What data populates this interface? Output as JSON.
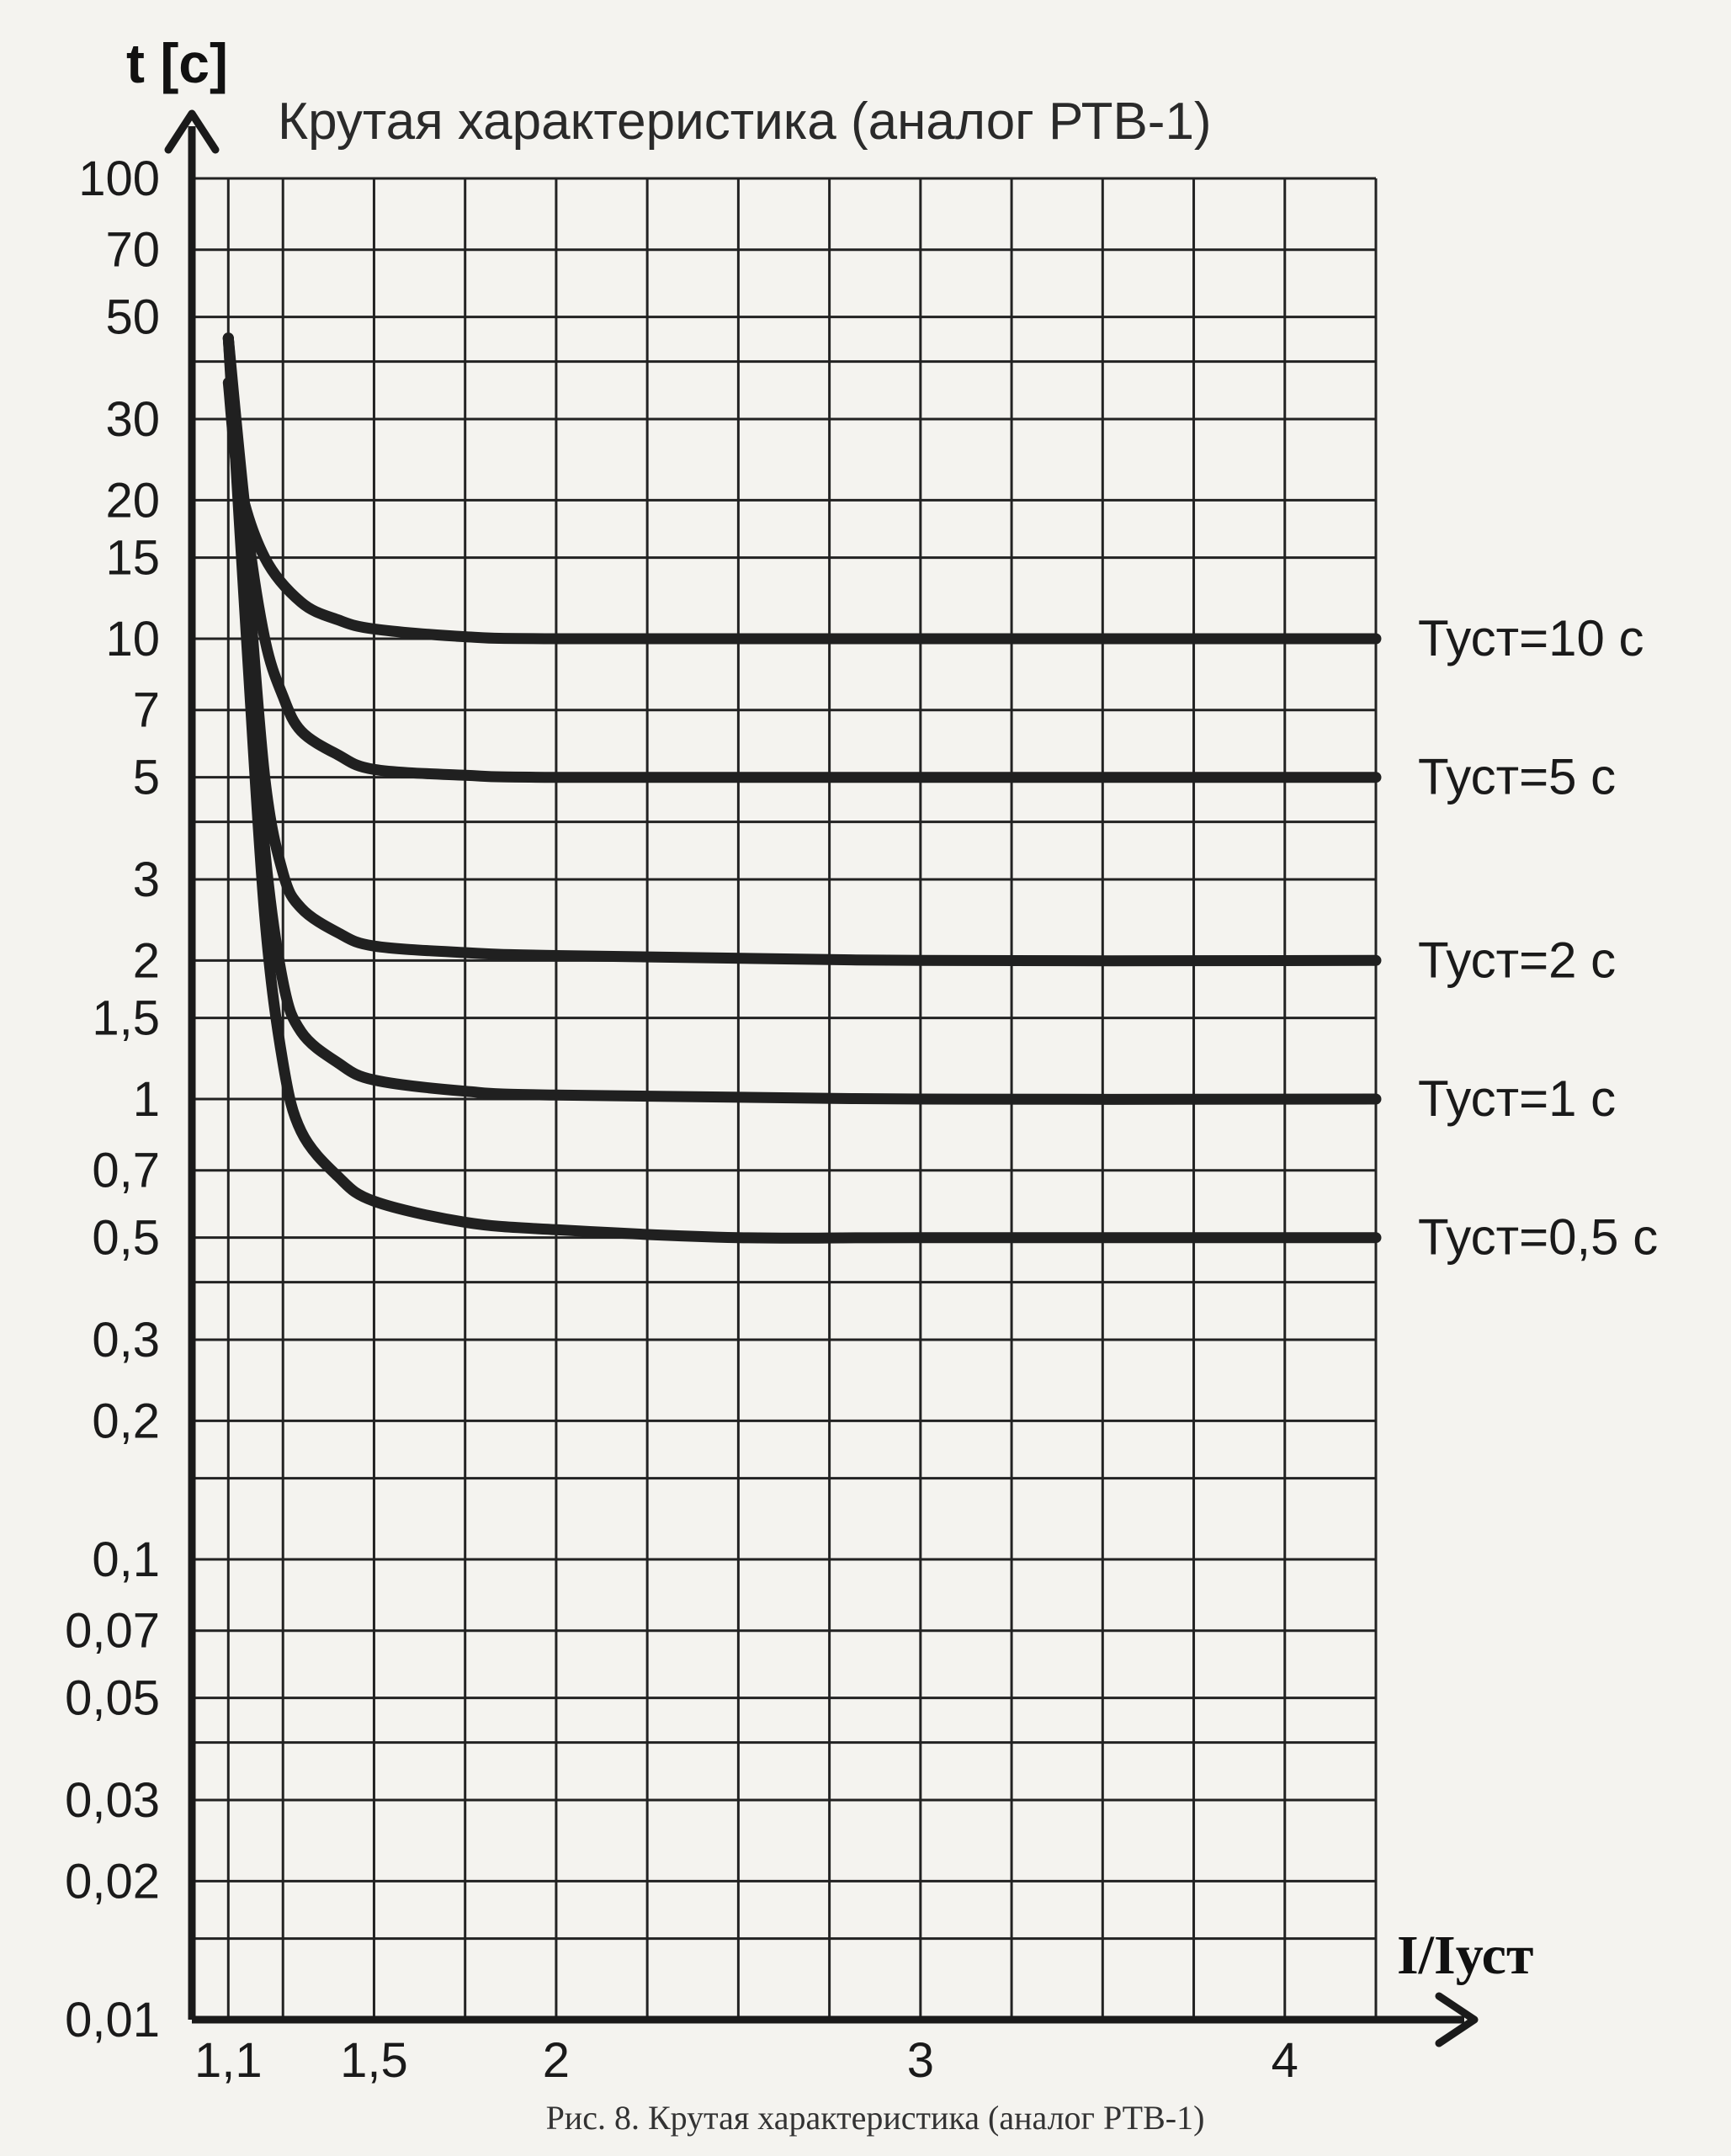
{
  "chart_data": {
    "type": "line",
    "title": "Крутая характеристика (аналог РТВ-1)",
    "ylabel": "t [с]",
    "xlabel": "I/Iуст",
    "caption": "Рис. 8. Крутая характеристика (аналог РТВ-1)",
    "xlim": [
      1.0,
      4.25
    ],
    "ylim": [
      0.01,
      100
    ],
    "yscale": "log",
    "grid": true,
    "x_ticks": [
      {
        "value": 1.1,
        "label": "1,1"
      },
      {
        "value": 1.5,
        "label": "1,5"
      },
      {
        "value": 2,
        "label": "2"
      },
      {
        "value": 3,
        "label": "3"
      },
      {
        "value": 4,
        "label": "4"
      }
    ],
    "x_grid": [
      1.1,
      1.25,
      1.5,
      1.75,
      2,
      2.25,
      2.5,
      2.75,
      3,
      3.25,
      3.5,
      3.75,
      4,
      4.25
    ],
    "y_ticks": [
      {
        "value": 100,
        "label": "100"
      },
      {
        "value": 70,
        "label": "70"
      },
      {
        "value": 50,
        "label": "50"
      },
      {
        "value": 30,
        "label": "30"
      },
      {
        "value": 20,
        "label": "20"
      },
      {
        "value": 15,
        "label": "15"
      },
      {
        "value": 10,
        "label": "10"
      },
      {
        "value": 7,
        "label": "7"
      },
      {
        "value": 5,
        "label": "5"
      },
      {
        "value": 3,
        "label": "3"
      },
      {
        "value": 2,
        "label": "2"
      },
      {
        "value": 1.5,
        "label": "1,5"
      },
      {
        "value": 1,
        "label": "1"
      },
      {
        "value": 0.7,
        "label": "0,7"
      },
      {
        "value": 0.5,
        "label": "0,5"
      },
      {
        "value": 0.3,
        "label": "0,3"
      },
      {
        "value": 0.2,
        "label": "0,2"
      },
      {
        "value": 0.1,
        "label": "0,1"
      },
      {
        "value": 0.07,
        "label": "0,07"
      },
      {
        "value": 0.05,
        "label": "0,05"
      },
      {
        "value": 0.03,
        "label": "0,03"
      },
      {
        "value": 0.02,
        "label": "0,02"
      },
      {
        "value": 0.01,
        "label": "0,01"
      }
    ],
    "y_grid": [
      100,
      70,
      50,
      40,
      30,
      20,
      15,
      10,
      7,
      5,
      4,
      3,
      2,
      1.5,
      1,
      0.7,
      0.5,
      0.4,
      0.3,
      0.2,
      0.15,
      0.1,
      0.07,
      0.05,
      0.04,
      0.03,
      0.02,
      0.015,
      0.01
    ],
    "series": [
      {
        "name": "Туст=10 с",
        "x": [
          1.1,
          1.13,
          1.2,
          1.3,
          1.4,
          1.5,
          1.75,
          2,
          3,
          4.25
        ],
        "y": [
          36,
          22,
          15,
          12,
          11,
          10.5,
          10.1,
          10,
          10,
          10
        ]
      },
      {
        "name": "Туст=5 с",
        "x": [
          1.1,
          1.15,
          1.2,
          1.25,
          1.3,
          1.4,
          1.5,
          1.75,
          2,
          3,
          4.25
        ],
        "y": [
          45,
          18,
          10,
          7.5,
          6.3,
          5.6,
          5.2,
          5.05,
          5,
          5,
          5
        ]
      },
      {
        "name": "Туст=2 с",
        "x": [
          1.1,
          1.15,
          1.2,
          1.25,
          1.3,
          1.4,
          1.5,
          1.75,
          2,
          3,
          4.25
        ],
        "y": [
          45,
          15,
          5,
          3.1,
          2.6,
          2.3,
          2.15,
          2.08,
          2.05,
          2.0,
          2.0
        ]
      },
      {
        "name": "Туст=1 с",
        "x": [
          1.1,
          1.15,
          1.2,
          1.25,
          1.3,
          1.4,
          1.5,
          1.75,
          2,
          3,
          4.25
        ],
        "y": [
          45,
          12,
          3.5,
          1.8,
          1.4,
          1.2,
          1.1,
          1.04,
          1.02,
          1.0,
          1.0
        ]
      },
      {
        "name": "Туст=0,5 с",
        "x": [
          1.1,
          1.15,
          1.2,
          1.25,
          1.3,
          1.4,
          1.5,
          1.75,
          2,
          2.5,
          3,
          4.25
        ],
        "y": [
          45,
          10,
          2.5,
          1.2,
          0.85,
          0.68,
          0.6,
          0.54,
          0.52,
          0.5,
          0.5,
          0.5
        ]
      }
    ]
  }
}
